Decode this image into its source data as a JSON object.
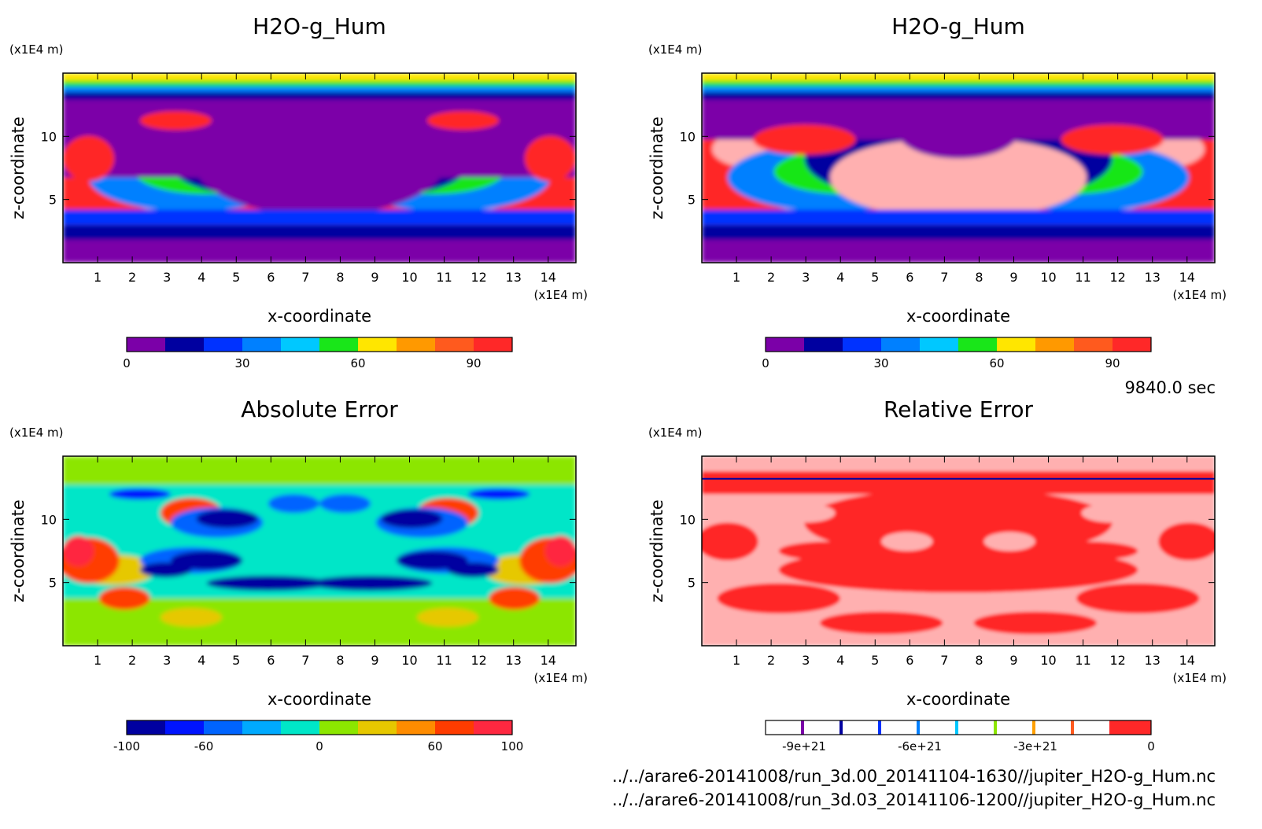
{
  "footer": {
    "time": "9840.0 sec",
    "file1": "../../arare6-20141008/run_3d.00_20141104-1630//jupiter_H2O-g_Hum.nc",
    "file2": "../../arare6-20141008/run_3d.03_20141106-1200//jupiter_H2O-g_Hum.nc"
  },
  "chart_data": [
    {
      "type": "heatmap",
      "title": "H2O-g_Hum",
      "xlabel": "x-coordinate",
      "ylabel": "z-coordinate",
      "x_unit": "(x1E4 m)",
      "y_unit": "(x1E4 m)",
      "xlim": [
        0,
        14.8
      ],
      "ylim": [
        0,
        15
      ],
      "xticks": [
        1,
        2,
        3,
        4,
        5,
        6,
        7,
        8,
        9,
        10,
        11,
        12,
        13,
        14
      ],
      "yticks": [
        5,
        10
      ],
      "colorbar": {
        "ticks": [
          0,
          30,
          60,
          90
        ],
        "range": [
          0,
          100
        ],
        "colors": [
          "#7b00a8",
          "#0000a0",
          "#0032ff",
          "#0080ff",
          "#00c8ff",
          "#19e619",
          "#ffe600",
          "#ff9900",
          "#ff5a1e",
          "#ff2828"
        ]
      }
    },
    {
      "type": "heatmap",
      "title": "H2O-g_Hum",
      "xlabel": "x-coordinate",
      "ylabel": "z-coordinate",
      "x_unit": "(x1E4 m)",
      "y_unit": "(x1E4 m)",
      "xlim": [
        0,
        14.8
      ],
      "ylim": [
        0,
        15
      ],
      "xticks": [
        1,
        2,
        3,
        4,
        5,
        6,
        7,
        8,
        9,
        10,
        11,
        12,
        13,
        14
      ],
      "yticks": [
        5,
        10
      ],
      "colorbar": {
        "ticks": [
          0,
          30,
          60,
          90
        ],
        "range": [
          0,
          100
        ],
        "colors": [
          "#7b00a8",
          "#0000a0",
          "#0032ff",
          "#0080ff",
          "#00c8ff",
          "#19e619",
          "#ffe600",
          "#ff9900",
          "#ff5a1e",
          "#ff2828"
        ]
      }
    },
    {
      "type": "heatmap",
      "title": "Absolute Error",
      "xlabel": "x-coordinate",
      "ylabel": "z-coordinate",
      "x_unit": "(x1E4 m)",
      "y_unit": "(x1E4 m)",
      "xlim": [
        0,
        14.8
      ],
      "ylim": [
        0,
        15
      ],
      "xticks": [
        1,
        2,
        3,
        4,
        5,
        6,
        7,
        8,
        9,
        10,
        11,
        12,
        13,
        14
      ],
      "yticks": [
        5,
        10
      ],
      "colorbar": {
        "ticks": [
          -100,
          -60,
          0,
          60,
          100
        ],
        "range": [
          -100,
          100
        ],
        "colors": [
          "#0000a0",
          "#0014ff",
          "#0064ff",
          "#00aaff",
          "#00e6c8",
          "#8ce600",
          "#e6c800",
          "#ff8c00",
          "#ff3c00",
          "#ff2840"
        ]
      }
    },
    {
      "type": "heatmap",
      "title": "Relative Error",
      "xlabel": "x-coordinate",
      "ylabel": "z-coordinate",
      "x_unit": "(x1E4 m)",
      "y_unit": "(x1E4 m)",
      "xlim": [
        0,
        14.8
      ],
      "ylim": [
        0,
        15
      ],
      "xticks": [
        1,
        2,
        3,
        4,
        5,
        6,
        7,
        8,
        9,
        10,
        11,
        12,
        13,
        14
      ],
      "yticks": [
        5,
        10
      ],
      "colorbar": {
        "ticks": [
          "-9e+21",
          "-6e+21",
          "-3e+21",
          "0"
        ],
        "tick_values": [
          -9e+21,
          -6e+21,
          -3e+21,
          0
        ],
        "range": [
          -1e+22,
          0
        ],
        "colors": [
          "#7b00a8",
          "#0000a0",
          "#0032ff",
          "#0080ff",
          "#00c8ff",
          "#8ce600",
          "#ffa000",
          "#ff5a1e",
          "#ff2828",
          "#ff2828"
        ],
        "style": "lines"
      },
      "colors": {
        "high": "#ff2828",
        "low": "#ffb0b0"
      }
    }
  ]
}
